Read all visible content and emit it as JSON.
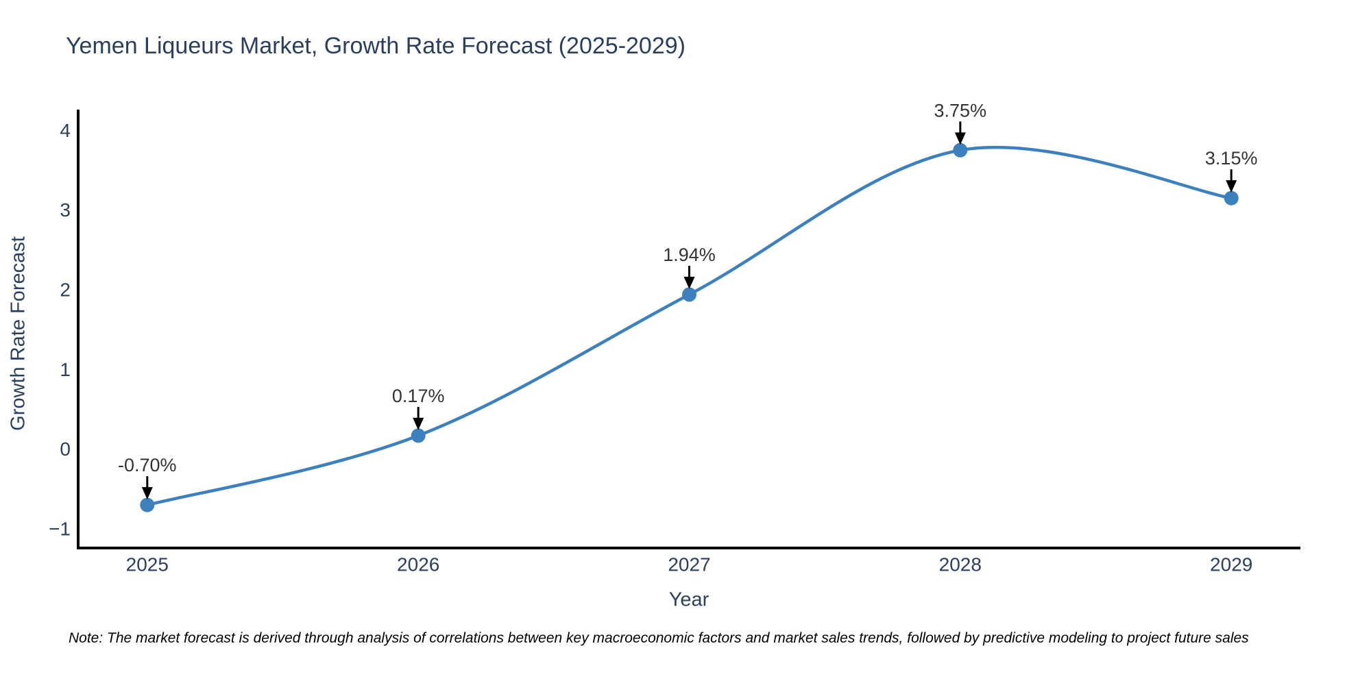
{
  "title": "Yemen Liqueurs Market, Growth Rate Forecast (2025-2029)",
  "note": "Note: The market forecast is derived through analysis of correlations between key macroeconomic factors and market sales trends, followed by predictive modeling to project future sales",
  "chart_data": {
    "type": "line",
    "title": "Yemen Liqueurs Market, Growth Rate Forecast (2025-2029)",
    "xlabel": "Year",
    "ylabel": "Growth Rate Forecast",
    "x": [
      2025,
      2026,
      2027,
      2028,
      2029
    ],
    "categories": [
      "2025",
      "2026",
      "2027",
      "2028",
      "2029"
    ],
    "values": [
      -0.7,
      0.17,
      1.94,
      3.75,
      3.15
    ],
    "point_labels": [
      "-0.70%",
      "0.17%",
      "1.94%",
      "3.75%",
      "3.15%"
    ],
    "yticks": [
      -1,
      0,
      1,
      2,
      3,
      4
    ],
    "ytick_labels": [
      "−1",
      "0",
      "1",
      "2",
      "3",
      "4"
    ],
    "xlim": [
      2024.745,
      2029.255
    ],
    "ylim": [
      -1.24,
      4.26
    ],
    "grid": false,
    "line_shape": "spline",
    "legend": "none",
    "colors": {
      "line": "#3c80bd",
      "marker": "#3c80bd",
      "axis": "#000000",
      "title_text": "#2a3f5f",
      "tick_text": "#2a3f5f",
      "axis_title_text": "#2a3f5f",
      "annotation_text": "#333333",
      "arrow": "#000000",
      "note_text": "#000000",
      "background": "#ffffff"
    }
  }
}
